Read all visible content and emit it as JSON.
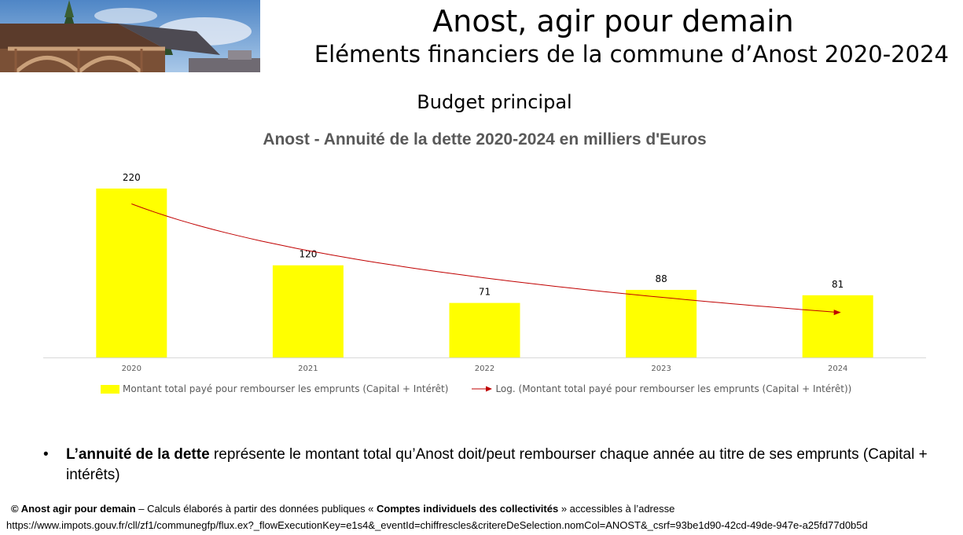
{
  "header": {
    "title": "Anost, agir pour demain",
    "subtitle": "Eléments financiers de la commune d’Anost 2020-2024"
  },
  "section_title": "Budget principal",
  "chart_data": {
    "type": "bar",
    "title": "Anost -  Annuité de la dette 2020-2024 en milliers d'Euros",
    "categories": [
      "2020",
      "2021",
      "2022",
      "2023",
      "2024"
    ],
    "series": [
      {
        "name": "Montant total payé pour rembourser les emprunts (Capital + Intérêt)",
        "values": [
          220,
          120,
          71,
          88,
          81
        ],
        "color": "#FFFF00"
      }
    ],
    "trendline": {
      "name": "Log. (Montant total payé pour rembourser les emprunts (Capital + Intérêt))",
      "type": "logarithmic",
      "color": "#C00000"
    },
    "ylim": [
      0,
      220
    ],
    "grid": false,
    "legend": "bottom"
  },
  "legend": {
    "bar_label": "Montant total payé pour rembourser les emprunts (Capital + Intérêt)",
    "trend_label": "Log. (Montant total payé pour rembourser les emprunts (Capital + Intérêt))"
  },
  "bullet": {
    "symbol": "•",
    "bold": "L’annuité de la dette",
    "rest": " représente le montant total qu’Anost doit/peut rembourser chaque année au titre de ses emprunts (Capital + intérêts)"
  },
  "footer": {
    "copyright": "© Anost agir pour demain",
    "text1": " – Calculs élaborés à partir des données publiques « ",
    "source_name": "Comptes individuels des collectivités",
    "text2": " » accessibles à l’adresse",
    "url": "https://www.impots.gouv.fr/cll/zf1/communegfp/flux.ex?_flowExecutionKey=e1s4&_eventId=chiffrescles&critereDeSelection.nomCol=ANOST&_csrf=93be1d90-42cd-49de-947e-a25fd77d0b5d"
  }
}
